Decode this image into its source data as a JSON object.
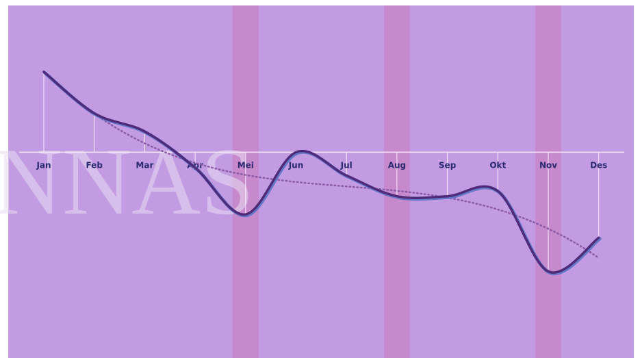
{
  "chart_data": {
    "type": "line",
    "categories": [
      "Jan",
      "Feb",
      "Mar",
      "Apr",
      "Mei",
      "Jun",
      "Jul",
      "Aug",
      "Sep",
      "Okt",
      "Nov",
      "Des"
    ],
    "series": [
      {
        "values": [
          1.55,
          0.75,
          0.4,
          -0.3,
          -1.2,
          0.0,
          -0.45,
          -0.85,
          -0.85,
          -0.75,
          -2.3,
          -1.65
        ]
      }
    ],
    "trendline": {
      "type": "polynomial",
      "style": "dotted"
    },
    "highlighted_categories": [
      "Mei",
      "Aug",
      "Nov"
    ],
    "ylim": [
      -3.97,
      2.83
    ],
    "grid": false,
    "legend": "none",
    "watermark": "NNAS",
    "colors": {
      "background": "#c29be2",
      "highlight_band": "#c786c8",
      "line": "#4e2a78",
      "line_shadow": "#5a74c8",
      "trend": "#8a5aa6",
      "tick_label": "#2a2a70",
      "axis": "#f2eaf8",
      "drop_line": "#f6eefa"
    }
  }
}
